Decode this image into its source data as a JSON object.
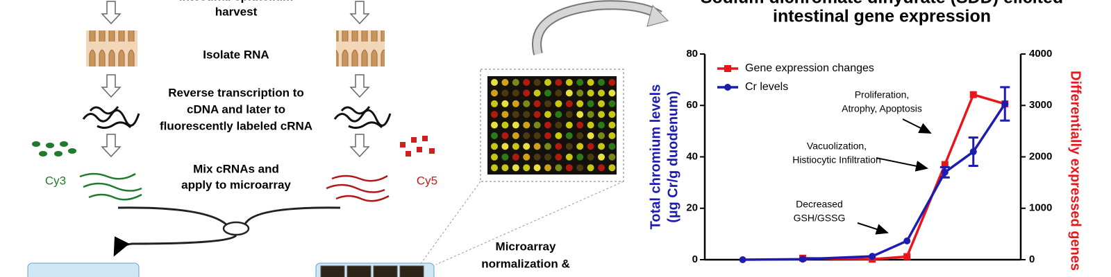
{
  "figure": {
    "steps": [
      [
        "intestinal epithelium",
        "harvest"
      ],
      [
        "Isolate RNA"
      ],
      [
        "Reverse transcription to",
        "cDNA and later to",
        "fluorescently labeled cRNA"
      ],
      [
        "Mix cRNAs and",
        "apply to microarray"
      ]
    ],
    "dyes": [
      "Cy3",
      "Cy5"
    ],
    "analysis": [
      "Microarray",
      "normalization &"
    ]
  },
  "chart_data": {
    "type": "line",
    "title": [
      "Sodium dichromate dihydrate (SDD) elicited",
      "intestinal gene expression"
    ],
    "ylabel": [
      "Total chromium levels",
      "(µg Cr/g duodenum)"
    ],
    "y2label": "Differentially expressed genes",
    "x": [
      12,
      31,
      53,
      64,
      76,
      85,
      95
    ],
    "xlim": [
      0,
      100
    ],
    "ylim": [
      0,
      80
    ],
    "yticks": [
      0,
      20,
      40,
      60,
      80
    ],
    "y2lim": [
      0,
      4000
    ],
    "y2ticks": [
      0,
      1000,
      2000,
      3000,
      4000
    ],
    "legend": "upper left",
    "series": [
      {
        "name": "Gene expression changes",
        "color": "#e8161b",
        "axis": "y2",
        "marker": "square",
        "values": [
          null,
          30,
          10,
          60,
          1850,
          3210,
          3030
        ]
      },
      {
        "name": "Cr levels",
        "color": "#1c1cb0",
        "axis": "y",
        "marker": "circle",
        "values": [
          0,
          0.2,
          1.3,
          7.3,
          34,
          42,
          60.6
        ],
        "errors": [
          null,
          null,
          null,
          null,
          2,
          5.5,
          6.5
        ]
      }
    ],
    "annotations": [
      [
        "Proliferation,",
        "Atrophy, Apoptosis"
      ],
      [
        "Vacuolization,",
        "Histiocytic Infiltration"
      ],
      [
        "Decreased",
        "GSH/GSSG"
      ]
    ]
  }
}
